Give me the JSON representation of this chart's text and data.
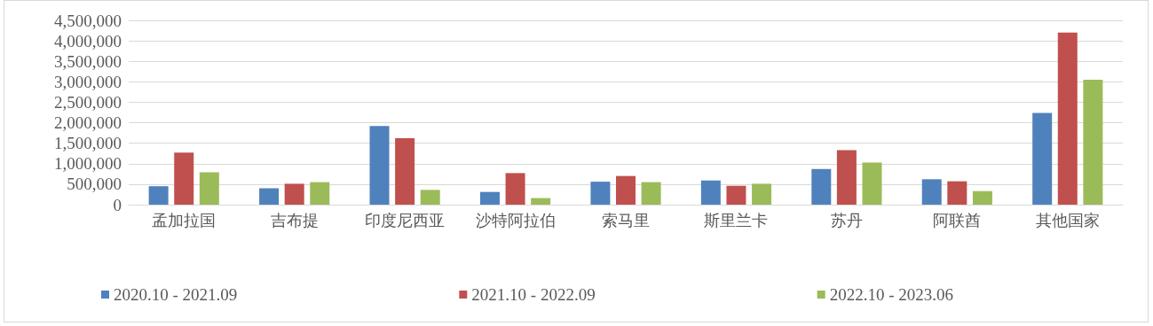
{
  "chart_data": {
    "type": "bar",
    "categories": [
      "孟加拉国",
      "吉布提",
      "印度尼西亚",
      "沙特阿拉伯",
      "索马里",
      "斯里兰卡",
      "苏丹",
      "阿联酋",
      "其他国家"
    ],
    "series": [
      {
        "name": "2020.10 - 2021.09",
        "color": "#4f81bd",
        "values": [
          450000,
          400000,
          1920000,
          310000,
          560000,
          590000,
          870000,
          620000,
          2240000
        ]
      },
      {
        "name": "2021.10 - 2022.09",
        "color": "#c0504d",
        "values": [
          1270000,
          510000,
          1620000,
          770000,
          700000,
          460000,
          1330000,
          570000,
          4200000
        ]
      },
      {
        "name": "2022.10 - 2023.06",
        "color": "#9bbb59",
        "values": [
          790000,
          550000,
          360000,
          160000,
          550000,
          510000,
          1030000,
          330000,
          3050000
        ]
      }
    ],
    "ylim": [
      0,
      4500000
    ],
    "yticks": [
      0,
      {
        "value": 500000,
        "label": "500,000"
      },
      {
        "value": 1000000,
        "label": "1,000,000"
      },
      {
        "value": 1500000,
        "label": "1,500,000"
      },
      {
        "value": 2000000,
        "label": "2,000,000"
      },
      {
        "value": 2500000,
        "label": "2,500,000"
      },
      {
        "value": 3000000,
        "label": "3,000,000"
      },
      {
        "value": 3500000,
        "label": "3,500,000"
      },
      {
        "value": 4000000,
        "label": "4,000,000"
      },
      {
        "value": 4500000,
        "label": "4,500,000"
      }
    ],
    "grid": "y",
    "legend": "bottom"
  }
}
